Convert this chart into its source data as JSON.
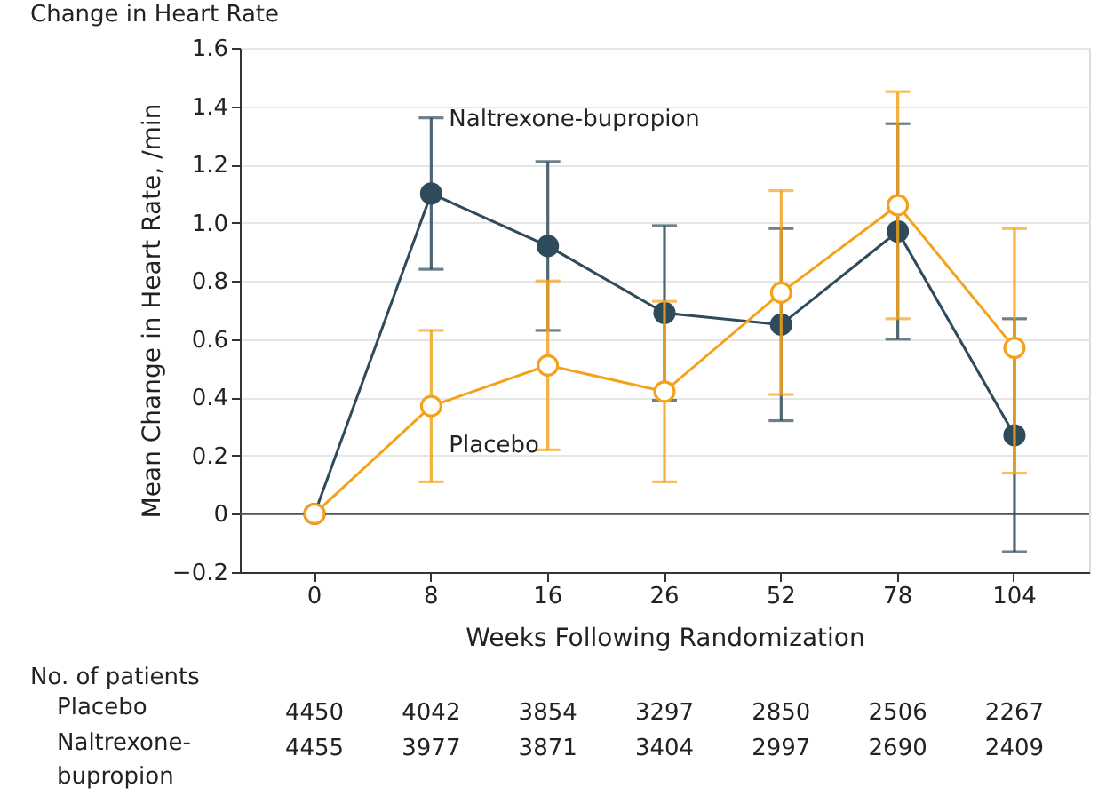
{
  "chart_data": {
    "type": "line",
    "title": "Change in Heart Rate",
    "xlabel": "Weeks Following Randomization",
    "ylabel": "Mean Change in Heart Rate, /min",
    "categories": [
      "0",
      "8",
      "16",
      "26",
      "52",
      "78",
      "104"
    ],
    "series": [
      {
        "name": "Naltrexone-bupropion",
        "color": "#2f4b5b",
        "values": [
          0,
          1.1,
          0.92,
          0.69,
          0.65,
          0.97,
          0.27
        ],
        "errors": [
          null,
          [
            0.84,
            1.36
          ],
          [
            0.63,
            1.21
          ],
          [
            0.39,
            0.99
          ],
          [
            0.32,
            0.98
          ],
          [
            0.6,
            1.34
          ],
          [
            -0.13,
            0.67
          ]
        ]
      },
      {
        "name": "Placebo",
        "color": "#f5a21b",
        "values": [
          0,
          0.37,
          0.51,
          0.42,
          0.76,
          1.06,
          0.57
        ],
        "errors": [
          null,
          [
            0.11,
            0.63
          ],
          [
            0.22,
            0.8
          ],
          [
            0.11,
            0.73
          ],
          [
            0.41,
            1.11
          ],
          [
            0.67,
            1.45
          ],
          [
            0.14,
            0.98
          ]
        ]
      }
    ],
    "ylim": [
      -0.2,
      1.6
    ],
    "yticks": [
      {
        "value": -0.2,
        "label": "−0.2"
      },
      0,
      0.2,
      0.4,
      0.6,
      0.8,
      {
        "value": 1,
        "label": "1.0"
      },
      1.2,
      1.4,
      1.6
    ],
    "grid": "y",
    "legend": false,
    "marker": "circle",
    "line_style": "solid",
    "ref_lines": [
      {
        "axis": "y",
        "value": 0,
        "color": "#555555"
      }
    ],
    "annotations": [
      "No. of patients",
      "Placebo",
      "Naltrexone-bupropion",
      "4450",
      "4042",
      "3854",
      "3297",
      "2850",
      "2506",
      "2267",
      "4455",
      "3977",
      "3871",
      "3404",
      "2997",
      "2690",
      "2409"
    ]
  }
}
